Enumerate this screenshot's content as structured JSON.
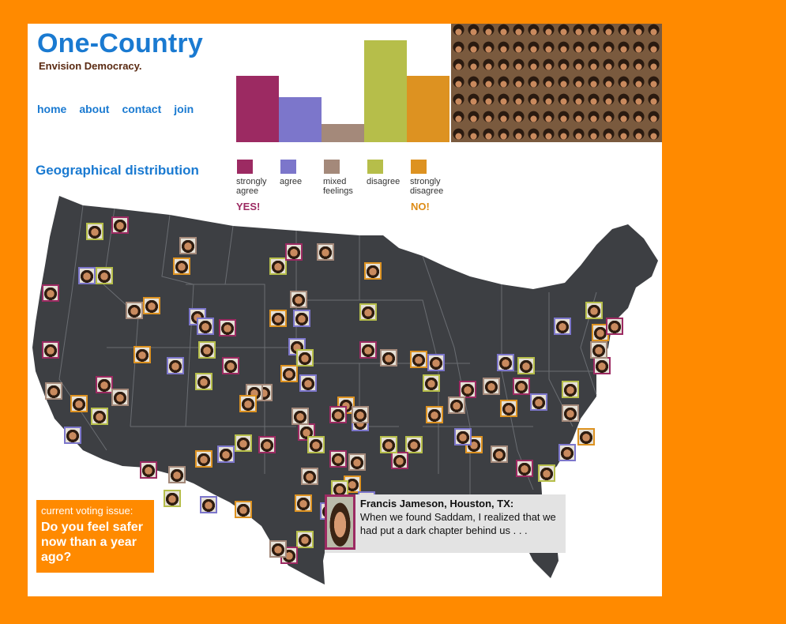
{
  "site": {
    "title": "One-Country",
    "tagline": "Envision Democracy."
  },
  "nav": [
    {
      "label": "home"
    },
    {
      "label": "about"
    },
    {
      "label": "contact"
    },
    {
      "label": "join"
    }
  ],
  "section_title": "Geographical distribution",
  "poll": {
    "categories": [
      {
        "label": "strongly agree",
        "color": "#9c2a62",
        "value": 0.56
      },
      {
        "label": "agree",
        "color": "#7c76cb",
        "value": 0.38
      },
      {
        "label": "mixed feelings",
        "color": "#a4897a",
        "value": 0.15
      },
      {
        "label": "disagree",
        "color": "#b6be4a",
        "value": 0.86
      },
      {
        "label": "strongly disagree",
        "color": "#dd9221",
        "value": 0.56
      }
    ],
    "yes_label": "YES!",
    "no_label": "NO!"
  },
  "voting_issue": {
    "label": "current voting issue:",
    "question": "Do you feel safer now than a year ago?"
  },
  "quote": {
    "author": "Francis Jameson, Houston, TX:",
    "text": "When we found Saddam, I realized that we had put a dark chapter behind us . . ."
  },
  "map": {
    "land_color": "#3d3f43",
    "border_color": "#6a6d72"
  }
}
